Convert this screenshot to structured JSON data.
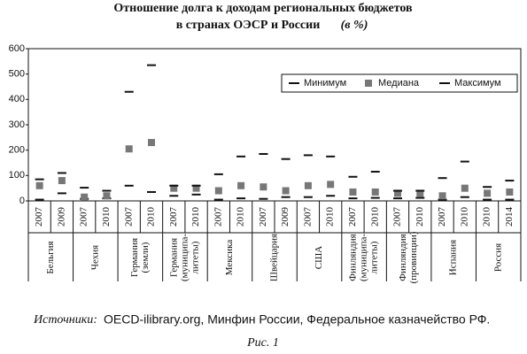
{
  "chart_data": {
    "type": "range",
    "title": [
      "Отношение долга к доходам региональных бюджетов",
      "в странах ОЭСР и России",
      "(в %)"
    ],
    "groups": [
      {
        "name": [
          "Бельгия"
        ],
        "categories": [
          "2007",
          "2009"
        ]
      },
      {
        "name": [
          "Чехия"
        ],
        "categories": [
          "2007",
          "2010"
        ]
      },
      {
        "name": [
          "Германия",
          "(земли)"
        ],
        "categories": [
          "2007",
          "2010"
        ]
      },
      {
        "name": [
          "Германия",
          "(муниципа-",
          "литеты)"
        ],
        "categories": [
          "2007",
          "2010"
        ]
      },
      {
        "name": [
          "Мексика"
        ],
        "categories": [
          "2007",
          "2010"
        ]
      },
      {
        "name": [
          "Швейцария"
        ],
        "categories": [
          "2007",
          "2009"
        ]
      },
      {
        "name": [
          "США"
        ],
        "categories": [
          "2007",
          "2010"
        ]
      },
      {
        "name": [
          "Финляндия",
          "(муниципа-",
          "литеты)"
        ],
        "categories": [
          "2007",
          "2010"
        ]
      },
      {
        "name": [
          "Финляндия",
          "(провинции)"
        ],
        "categories": [
          "2007",
          "2010"
        ]
      },
      {
        "name": [
          "Испания"
        ],
        "categories": [
          "2007",
          "2010"
        ]
      },
      {
        "name": [
          "Россия"
        ],
        "categories": [
          "2010",
          "2014"
        ]
      }
    ],
    "series": [
      {
        "name": "Минимум",
        "color": "#111111",
        "marker": "dash",
        "values": [
          5,
          30,
          8,
          10,
          60,
          35,
          20,
          25,
          5,
          10,
          8,
          15,
          15,
          20,
          10,
          12,
          10,
          12,
          5,
          15,
          5,
          5
        ]
      },
      {
        "name": "Медиана",
        "color": "#777777",
        "marker": "square",
        "values": [
          60,
          80,
          15,
          20,
          205,
          230,
          50,
          50,
          40,
          60,
          55,
          40,
          60,
          65,
          35,
          35,
          30,
          30,
          20,
          50,
          30,
          35
        ]
      },
      {
        "name": "Максимум",
        "color": "#111111",
        "marker": "dash",
        "values": [
          85,
          110,
          52,
          40,
          430,
          535,
          60,
          60,
          105,
          175,
          185,
          165,
          180,
          175,
          95,
          115,
          40,
          40,
          90,
          155,
          55,
          80
        ]
      }
    ],
    "ylim": [
      0,
      600
    ],
    "yticks": [
      0,
      100,
      200,
      300,
      400,
      500,
      600
    ],
    "grid": false,
    "legend": "top-right",
    "source_label": "Источники:",
    "source_text": "OECD-ilibrary.org, Минфин России, Федеральное казначейство РФ.",
    "caption": "Рис. 1"
  }
}
